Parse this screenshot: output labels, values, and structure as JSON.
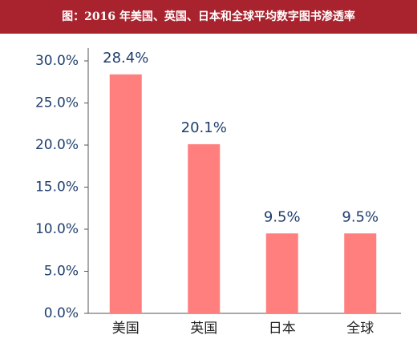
{
  "chart_data": {
    "type": "bar",
    "title": "图：2016 年美国、英国、日本和全球平均数字图书渗透率",
    "categories": [
      "美国",
      "英国",
      "日本",
      "全球"
    ],
    "values": [
      28.4,
      20.1,
      9.5,
      9.5
    ],
    "value_labels": [
      "28.4%",
      "20.1%",
      "9.5%",
      "9.5%"
    ],
    "color": "#ff7f7f",
    "ylim": [
      0,
      30
    ],
    "yticks": [
      {
        "value": 0,
        "label": "0.0%"
      },
      {
        "value": 5,
        "label": "5.0%"
      },
      {
        "value": 10,
        "label": "10.0%"
      },
      {
        "value": 15,
        "label": "15.0%"
      },
      {
        "value": 20,
        "label": "20.0%"
      },
      {
        "value": 25,
        "label": "25.0%"
      },
      {
        "value": 30,
        "label": "30.0%"
      }
    ],
    "grid": false
  }
}
